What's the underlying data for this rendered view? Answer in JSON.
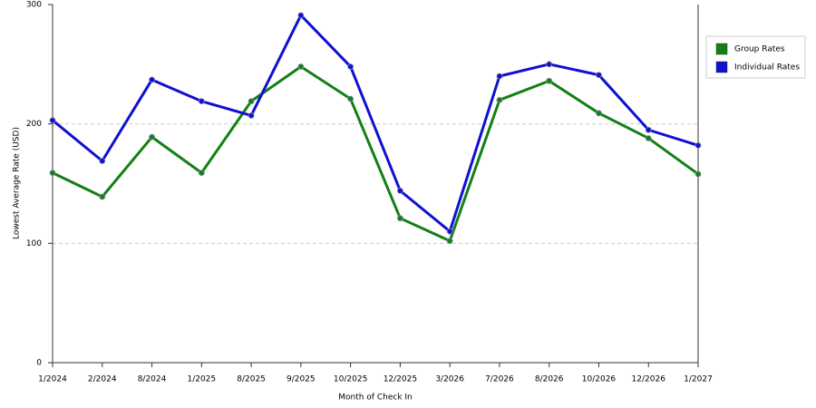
{
  "chart_data": {
    "type": "line",
    "x_label": "Month of Check In",
    "y_label": "Lowest Average Rate (USD)",
    "categories": [
      "1/2024",
      "2/2024",
      "8/2024",
      "1/2025",
      "8/2025",
      "9/2025",
      "10/2025",
      "12/2025",
      "3/2026",
      "7/2026",
      "8/2026",
      "10/2026",
      "12/2026",
      "1/2027"
    ],
    "series": [
      {
        "name": "Group Rates",
        "color": "#138013",
        "values": [
          159,
          139,
          189,
          159,
          219,
          248,
          221,
          121,
          102,
          220,
          236,
          209,
          188,
          158
        ]
      },
      {
        "name": "Individual Rates",
        "color": "#1010d0",
        "values": [
          203,
          169,
          237,
          219,
          207,
          291,
          248,
          144,
          110,
          240,
          250,
          241,
          195,
          182
        ]
      }
    ],
    "ylim": [
      0,
      300
    ],
    "yticks": [
      0,
      100,
      200,
      300
    ],
    "grid": true,
    "legend": "right"
  }
}
